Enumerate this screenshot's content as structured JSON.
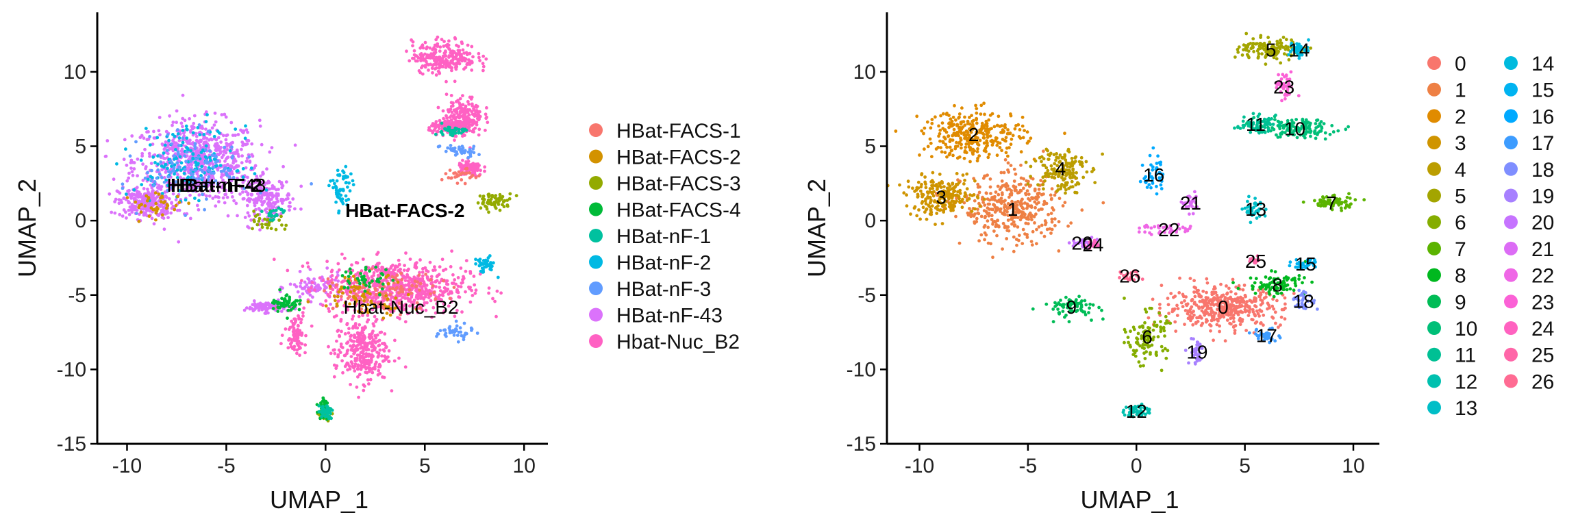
{
  "chart_data": [
    {
      "type": "scatter",
      "title": "",
      "xlabel": "UMAP_1",
      "ylabel": "UMAP_2",
      "xlim": [
        -11.5,
        11.2
      ],
      "ylim": [
        -15,
        14
      ],
      "x_ticks": [
        "-10",
        "-5",
        "0",
        "5",
        "10"
      ],
      "y_ticks": [
        "-15",
        "-10",
        "-5",
        "0",
        "5",
        "10"
      ],
      "legend_position": "right",
      "legend": [
        {
          "name": "HBat-FACS-1",
          "color": "#F8766D"
        },
        {
          "name": "HBat-FACS-2",
          "color": "#D39200"
        },
        {
          "name": "HBat-FACS-3",
          "color": "#93AA00"
        },
        {
          "name": "HBat-FACS-4",
          "color": "#00BA38"
        },
        {
          "name": "HBat-nF-1",
          "color": "#00C19F"
        },
        {
          "name": "HBat-nF-2",
          "color": "#00B9E3"
        },
        {
          "name": "HBat-nF-3",
          "color": "#619CFF"
        },
        {
          "name": "HBat-nF-43",
          "color": "#DB72FB"
        },
        {
          "name": "Hbat-Nuc_B2",
          "color": "#FF61C3"
        }
      ],
      "annotations": [
        {
          "text": "HBat-nF-2",
          "x": -5.5,
          "y": 2.4,
          "bold": true
        },
        {
          "text": "HBat-nF-43",
          "x": -5.5,
          "y": 2.4,
          "bold": false
        },
        {
          "text": "HBat-FACS-2",
          "x": 4.0,
          "y": 0.7,
          "bold": true
        },
        {
          "text": "Hbat-Nuc_B2",
          "x": 3.8,
          "y": -5.8,
          "bold": false
        }
      ],
      "groups": [
        {
          "name": "HBat-nF-43",
          "color": "#DB72FB",
          "blobs": [
            [
              -6.5,
              4.0,
              3.5,
              3.0,
              700
            ],
            [
              -9.0,
              1.2,
              1.6,
              1.2,
              250
            ],
            [
              -3.0,
              1.5,
              1.5,
              1.5,
              200
            ],
            [
              -3.0,
              -5.8,
              1.2,
              0.4,
              90
            ],
            [
              -0.5,
              -4.5,
              1.5,
              1.0,
              80
            ]
          ]
        },
        {
          "name": "Hbat-Nuc_B2",
          "color": "#FF61C3",
          "blobs": [
            [
              3.5,
              -4.5,
              4.0,
              2.0,
              700
            ],
            [
              1.8,
              -8.8,
              1.5,
              2.3,
              300
            ],
            [
              6.0,
              11.0,
              1.8,
              1.2,
              250
            ],
            [
              7.0,
              7.0,
              1.0,
              1.5,
              180
            ],
            [
              6.3,
              6.3,
              1.2,
              0.5,
              120
            ],
            [
              7.3,
              3.5,
              0.7,
              0.6,
              80
            ],
            [
              -1.5,
              -7.5,
              0.6,
              1.5,
              80
            ]
          ]
        },
        {
          "name": "HBat-nF-2",
          "color": "#00B9E3",
          "blobs": [
            [
              -7.0,
              4.0,
              2.8,
              2.5,
              150
            ],
            [
              0.8,
              2.0,
              0.6,
              1.8,
              60
            ],
            [
              8.0,
              -3.0,
              0.6,
              0.6,
              40
            ]
          ]
        },
        {
          "name": "HBat-nF-3",
          "color": "#619CFF",
          "blobs": [
            [
              -6.5,
              3.5,
              3.0,
              2.5,
              120
            ],
            [
              6.5,
              -7.5,
              1.0,
              0.6,
              40
            ],
            [
              6.7,
              4.7,
              1.0,
              0.5,
              40
            ]
          ]
        },
        {
          "name": "HBat-FACS-1",
          "color": "#F8766D",
          "blobs": [
            [
              3.0,
              -4.8,
              3.0,
              1.4,
              100
            ],
            [
              6.8,
              3.0,
              1.0,
              0.5,
              30
            ]
          ]
        },
        {
          "name": "HBat-FACS-2",
          "color": "#D39200",
          "blobs": [
            [
              2.0,
              -5.0,
              2.5,
              1.5,
              70
            ],
            [
              -8.5,
              1.0,
              1.5,
              1.0,
              40
            ]
          ]
        },
        {
          "name": "HBat-FACS-3",
          "color": "#93AA00",
          "blobs": [
            [
              8.5,
              1.3,
              1.0,
              0.6,
              60
            ],
            [
              0.0,
              -13.0,
              0.4,
              0.4,
              30
            ],
            [
              -3.0,
              0.0,
              1.0,
              0.8,
              30
            ]
          ]
        },
        {
          "name": "HBat-FACS-4",
          "color": "#00BA38",
          "blobs": [
            [
              -2.0,
              -5.5,
              0.8,
              0.8,
              50
            ],
            [
              2.0,
              -4.0,
              1.5,
              1.0,
              40
            ],
            [
              -0.1,
              -12.5,
              0.3,
              1.0,
              30
            ]
          ]
        },
        {
          "name": "HBat-nF-1",
          "color": "#00C19F",
          "blobs": [
            [
              0.0,
              -12.8,
              0.4,
              0.5,
              40
            ],
            [
              6.3,
              6.0,
              0.8,
              0.4,
              40
            ],
            [
              -2.5,
              0.5,
              0.8,
              0.5,
              20
            ]
          ]
        }
      ]
    },
    {
      "type": "scatter",
      "title": "",
      "xlabel": "UMAP_1",
      "ylabel": "UMAP_2",
      "xlim": [
        -11.5,
        11.2
      ],
      "ylim": [
        -15,
        14
      ],
      "x_ticks": [
        "-10",
        "-5",
        "0",
        "5",
        "10"
      ],
      "y_ticks": [
        "-15",
        "-10",
        "-5",
        "0",
        "5",
        "10"
      ],
      "legend_position": "right",
      "legend": [
        {
          "name": "0",
          "color": "#F8766D"
        },
        {
          "name": "1",
          "color": "#EE8044"
        },
        {
          "name": "2",
          "color": "#E08B00"
        },
        {
          "name": "3",
          "color": "#CF9400"
        },
        {
          "name": "4",
          "color": "#BB9D00"
        },
        {
          "name": "5",
          "color": "#A3A500"
        },
        {
          "name": "6",
          "color": "#85AD00"
        },
        {
          "name": "7",
          "color": "#5BB300"
        },
        {
          "name": "8",
          "color": "#00B81F"
        },
        {
          "name": "9",
          "color": "#00BC56"
        },
        {
          "name": "10",
          "color": "#00BF78"
        },
        {
          "name": "11",
          "color": "#00C094"
        },
        {
          "name": "12",
          "color": "#00C0AF"
        },
        {
          "name": "13",
          "color": "#00BEC7"
        },
        {
          "name": "14",
          "color": "#00BADE"
        },
        {
          "name": "15",
          "color": "#00B3F1"
        },
        {
          "name": "16",
          "color": "#00A9FF"
        },
        {
          "name": "17",
          "color": "#3D9CFF"
        },
        {
          "name": "18",
          "color": "#7F8EFF"
        },
        {
          "name": "19",
          "color": "#A780FF"
        },
        {
          "name": "20",
          "color": "#C673FF"
        },
        {
          "name": "21",
          "color": "#DC6CF5"
        },
        {
          "name": "22",
          "color": "#EF67E6"
        },
        {
          "name": "23",
          "color": "#FB61D6"
        },
        {
          "name": "24",
          "color": "#FF62C0"
        },
        {
          "name": "25",
          "color": "#FF66A8"
        },
        {
          "name": "26",
          "color": "#FF6B93"
        }
      ],
      "clusters": [
        {
          "id": "0",
          "x": 4.0,
          "y": -5.8
        },
        {
          "id": "1",
          "x": -5.7,
          "y": 0.8
        },
        {
          "id": "2",
          "x": -7.5,
          "y": 5.8
        },
        {
          "id": "3",
          "x": -9.0,
          "y": 1.6
        },
        {
          "id": "4",
          "x": -3.5,
          "y": 3.5
        },
        {
          "id": "5",
          "x": 6.2,
          "y": 11.5
        },
        {
          "id": "6",
          "x": 0.5,
          "y": -7.8
        },
        {
          "id": "7",
          "x": 9.0,
          "y": 1.2
        },
        {
          "id": "8",
          "x": 6.5,
          "y": -4.3
        },
        {
          "id": "9",
          "x": -3.0,
          "y": -5.8
        },
        {
          "id": "10",
          "x": 7.3,
          "y": 6.2
        },
        {
          "id": "11",
          "x": 5.5,
          "y": 6.5
        },
        {
          "id": "12",
          "x": 0.0,
          "y": -12.8
        },
        {
          "id": "13",
          "x": 5.5,
          "y": 0.8
        },
        {
          "id": "14",
          "x": 7.5,
          "y": 11.5
        },
        {
          "id": "15",
          "x": 7.8,
          "y": -2.9
        },
        {
          "id": "16",
          "x": 0.8,
          "y": 3.1
        },
        {
          "id": "17",
          "x": 6.0,
          "y": -7.7
        },
        {
          "id": "18",
          "x": 7.7,
          "y": -5.4
        },
        {
          "id": "19",
          "x": 2.8,
          "y": -8.8
        },
        {
          "id": "20",
          "x": -2.5,
          "y": -1.5
        },
        {
          "id": "21",
          "x": 2.5,
          "y": 1.2
        },
        {
          "id": "22",
          "x": 1.5,
          "y": -0.6
        },
        {
          "id": "23",
          "x": 6.8,
          "y": 9.0
        },
        {
          "id": "24",
          "x": -2.0,
          "y": -1.6
        },
        {
          "id": "25",
          "x": 5.5,
          "y": -2.7
        },
        {
          "id": "26",
          "x": -0.3,
          "y": -3.7
        }
      ]
    }
  ]
}
